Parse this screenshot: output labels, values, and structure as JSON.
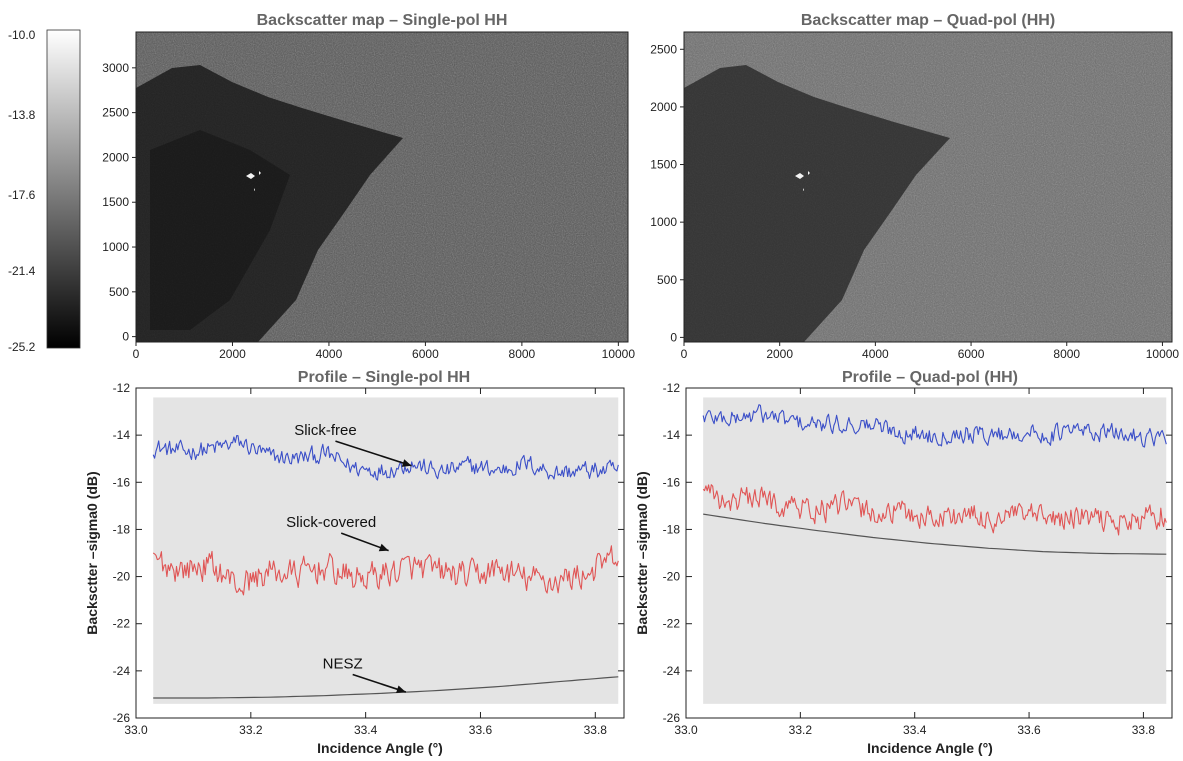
{
  "colorbar": {
    "ticks": [
      "-10.0",
      "-13.8",
      "-17.6",
      "-21.4",
      "-25.2"
    ]
  },
  "chart_data": [
    {
      "type": "heatmap",
      "title": "Backscatter map – Single-pol HH",
      "xlim": [
        0,
        10200
      ],
      "ylim": [
        -60,
        3400
      ],
      "x_ticks": [
        0,
        2000,
        4000,
        6000,
        8000,
        10000
      ],
      "y_ticks": [
        0,
        500,
        1000,
        1500,
        2000,
        2500,
        3000
      ],
      "grid": false
    },
    {
      "type": "heatmap",
      "title": "Backscatter map – Quad-pol (HH)",
      "xlim": [
        0,
        10200
      ],
      "ylim": [
        -40,
        2650
      ],
      "x_ticks": [
        0,
        2000,
        4000,
        6000,
        8000,
        10000
      ],
      "y_ticks": [
        0,
        500,
        1000,
        1500,
        2000,
        2500
      ],
      "grid": false
    },
    {
      "type": "line",
      "title": "Profile – Single-pol HH",
      "xlabel": "Incidence Angle (°)",
      "ylabel": "Backsctter –sigma0 (dB)",
      "xlim": [
        33.0,
        33.85
      ],
      "ylim": [
        -26,
        -12
      ],
      "x_ticks": [
        "33.0",
        "33.2",
        "33.4",
        "33.6",
        "33.8"
      ],
      "y_ticks": [
        -12,
        -14,
        -16,
        -18,
        -20,
        -22,
        -24,
        -26
      ],
      "plot_area_x": [
        33.03,
        33.84
      ],
      "series": [
        {
          "name": "Slick-free",
          "color": "#3b4fc8",
          "x": [
            33.03,
            33.08,
            33.13,
            33.18,
            33.23,
            33.28,
            33.33,
            33.38,
            33.43,
            33.48,
            33.53,
            33.58,
            33.63,
            33.68,
            33.73,
            33.78,
            33.84
          ],
          "values": [
            -14.5,
            -14.7,
            -14.6,
            -14.3,
            -14.9,
            -15.0,
            -14.8,
            -15.4,
            -15.5,
            -15.2,
            -15.6,
            -15.3,
            -15.5,
            -15.2,
            -15.6,
            -15.5,
            -15.5
          ],
          "noise": 0.32
        },
        {
          "name": "Slick-covered",
          "color": "#e05555",
          "x": [
            33.03,
            33.08,
            33.13,
            33.18,
            33.23,
            33.28,
            33.33,
            33.38,
            33.43,
            33.48,
            33.53,
            33.58,
            33.63,
            33.68,
            33.73,
            33.78,
            33.84
          ],
          "values": [
            -19.3,
            -19.7,
            -19.5,
            -20.4,
            -19.8,
            -19.9,
            -19.6,
            -20.1,
            -19.9,
            -19.6,
            -19.8,
            -20.0,
            -19.7,
            -20.1,
            -20.2,
            -19.9,
            -19.2
          ],
          "noise": 0.5
        },
        {
          "name": "NESZ",
          "color": "#555555",
          "x": [
            33.03,
            33.13,
            33.23,
            33.33,
            33.43,
            33.53,
            33.63,
            33.73,
            33.84
          ],
          "values": [
            -25.15,
            -25.15,
            -25.12,
            -25.05,
            -24.95,
            -24.83,
            -24.67,
            -24.47,
            -24.25
          ],
          "noise": 0
        }
      ],
      "annotations": [
        {
          "text": "Slick-free",
          "x": 33.33,
          "y": -14.0,
          "arrow_to": [
            33.48,
            -15.3
          ]
        },
        {
          "text": "Slick-covered",
          "x": 33.34,
          "y": -17.9,
          "arrow_to": [
            33.44,
            -18.9
          ]
        },
        {
          "text": "NESZ",
          "x": 33.36,
          "y": -23.9,
          "arrow_to": [
            33.47,
            -24.9
          ]
        }
      ]
    },
    {
      "type": "line",
      "title": "Profile – Quad-pol (HH)",
      "xlabel": "Incidence Angle (°)",
      "ylabel": "Backsctter –sigma0 (dB)",
      "xlim": [
        33.0,
        33.85
      ],
      "ylim": [
        -26,
        -12
      ],
      "x_ticks": [
        "33.0",
        "33.2",
        "33.4",
        "33.6",
        "33.8"
      ],
      "y_ticks": [
        -12,
        -14,
        -16,
        -18,
        -20,
        -22,
        -24,
        -26
      ],
      "plot_area_x": [
        33.03,
        33.84
      ],
      "series": [
        {
          "color": "#3b4fc8",
          "x": [
            33.03,
            33.08,
            33.13,
            33.18,
            33.23,
            33.28,
            33.33,
            33.38,
            33.43,
            33.48,
            33.53,
            33.58,
            33.63,
            33.68,
            33.73,
            33.78,
            33.84
          ],
          "values": [
            -13.2,
            -13.3,
            -13.1,
            -13.4,
            -13.6,
            -13.5,
            -13.6,
            -13.9,
            -14.0,
            -13.9,
            -14.0,
            -13.9,
            -14.0,
            -13.8,
            -13.9,
            -14.0,
            -14.1
          ],
          "noise": 0.32
        },
        {
          "color": "#e05555",
          "x": [
            33.03,
            33.08,
            33.13,
            33.18,
            33.23,
            33.28,
            33.33,
            33.38,
            33.43,
            33.48,
            33.53,
            33.58,
            33.63,
            33.68,
            33.73,
            33.78,
            33.84
          ],
          "values": [
            -16.6,
            -16.8,
            -16.7,
            -17.0,
            -17.2,
            -17.0,
            -17.3,
            -17.3,
            -17.5,
            -17.4,
            -17.6,
            -17.4,
            -17.6,
            -17.5,
            -17.6,
            -17.7,
            -17.3
          ],
          "noise": 0.45
        },
        {
          "color": "#555555",
          "x": [
            33.03,
            33.13,
            33.23,
            33.33,
            33.43,
            33.53,
            33.63,
            33.73,
            33.84
          ],
          "values": [
            -17.35,
            -17.72,
            -18.05,
            -18.35,
            -18.6,
            -18.8,
            -18.95,
            -19.02,
            -19.05
          ],
          "noise": 0
        }
      ]
    }
  ]
}
